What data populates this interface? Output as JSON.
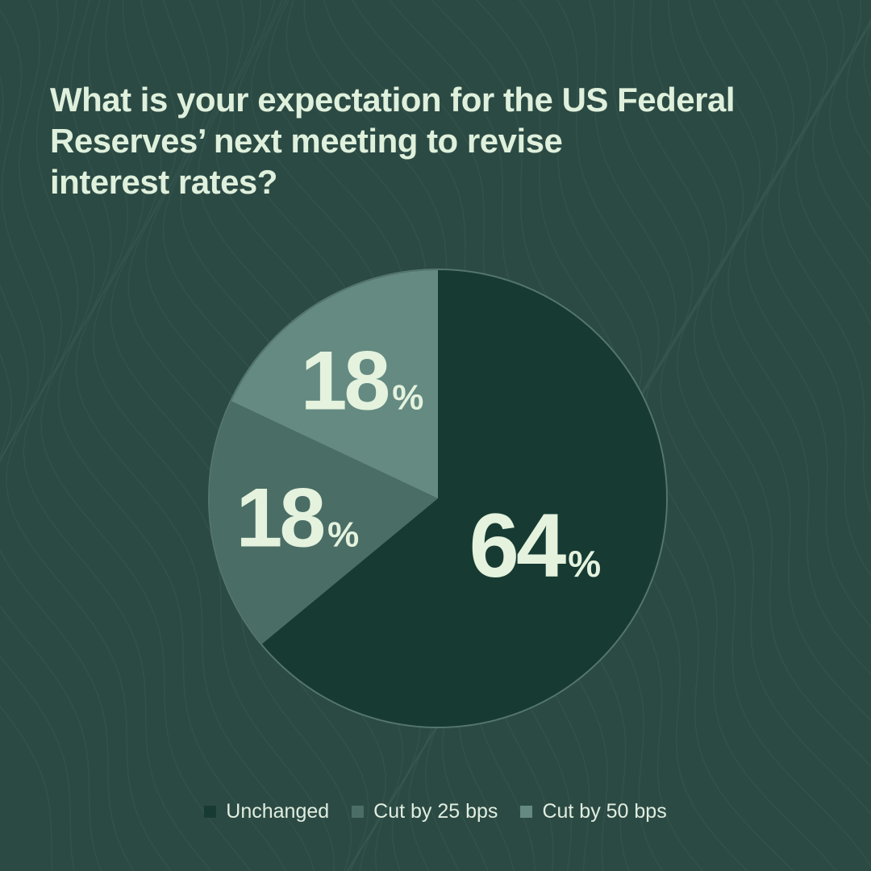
{
  "title_lines": [
    "What is your expectation for the US Federal",
    "Reserves’ next meeting to revise",
    "interest rates?"
  ],
  "colors": {
    "background": "#2c4a44",
    "text": "#dff0dc",
    "unchanged": "#173b33",
    "cut_25": "#4a6d65",
    "cut_50": "#648a81"
  },
  "chart_data": {
    "type": "pie",
    "title": "What is your expectation for the US Federal Reserves’ next meeting to revise interest rates?",
    "unit": "%",
    "slices": [
      {
        "label": "Unchanged",
        "value": 64,
        "color": "#173b33"
      },
      {
        "label": "Cut by 25 bps",
        "value": 18,
        "color": "#4a6d65"
      },
      {
        "label": "Cut by 50 bps",
        "value": 18,
        "color": "#648a81"
      }
    ],
    "legend_position": "bottom-center"
  }
}
